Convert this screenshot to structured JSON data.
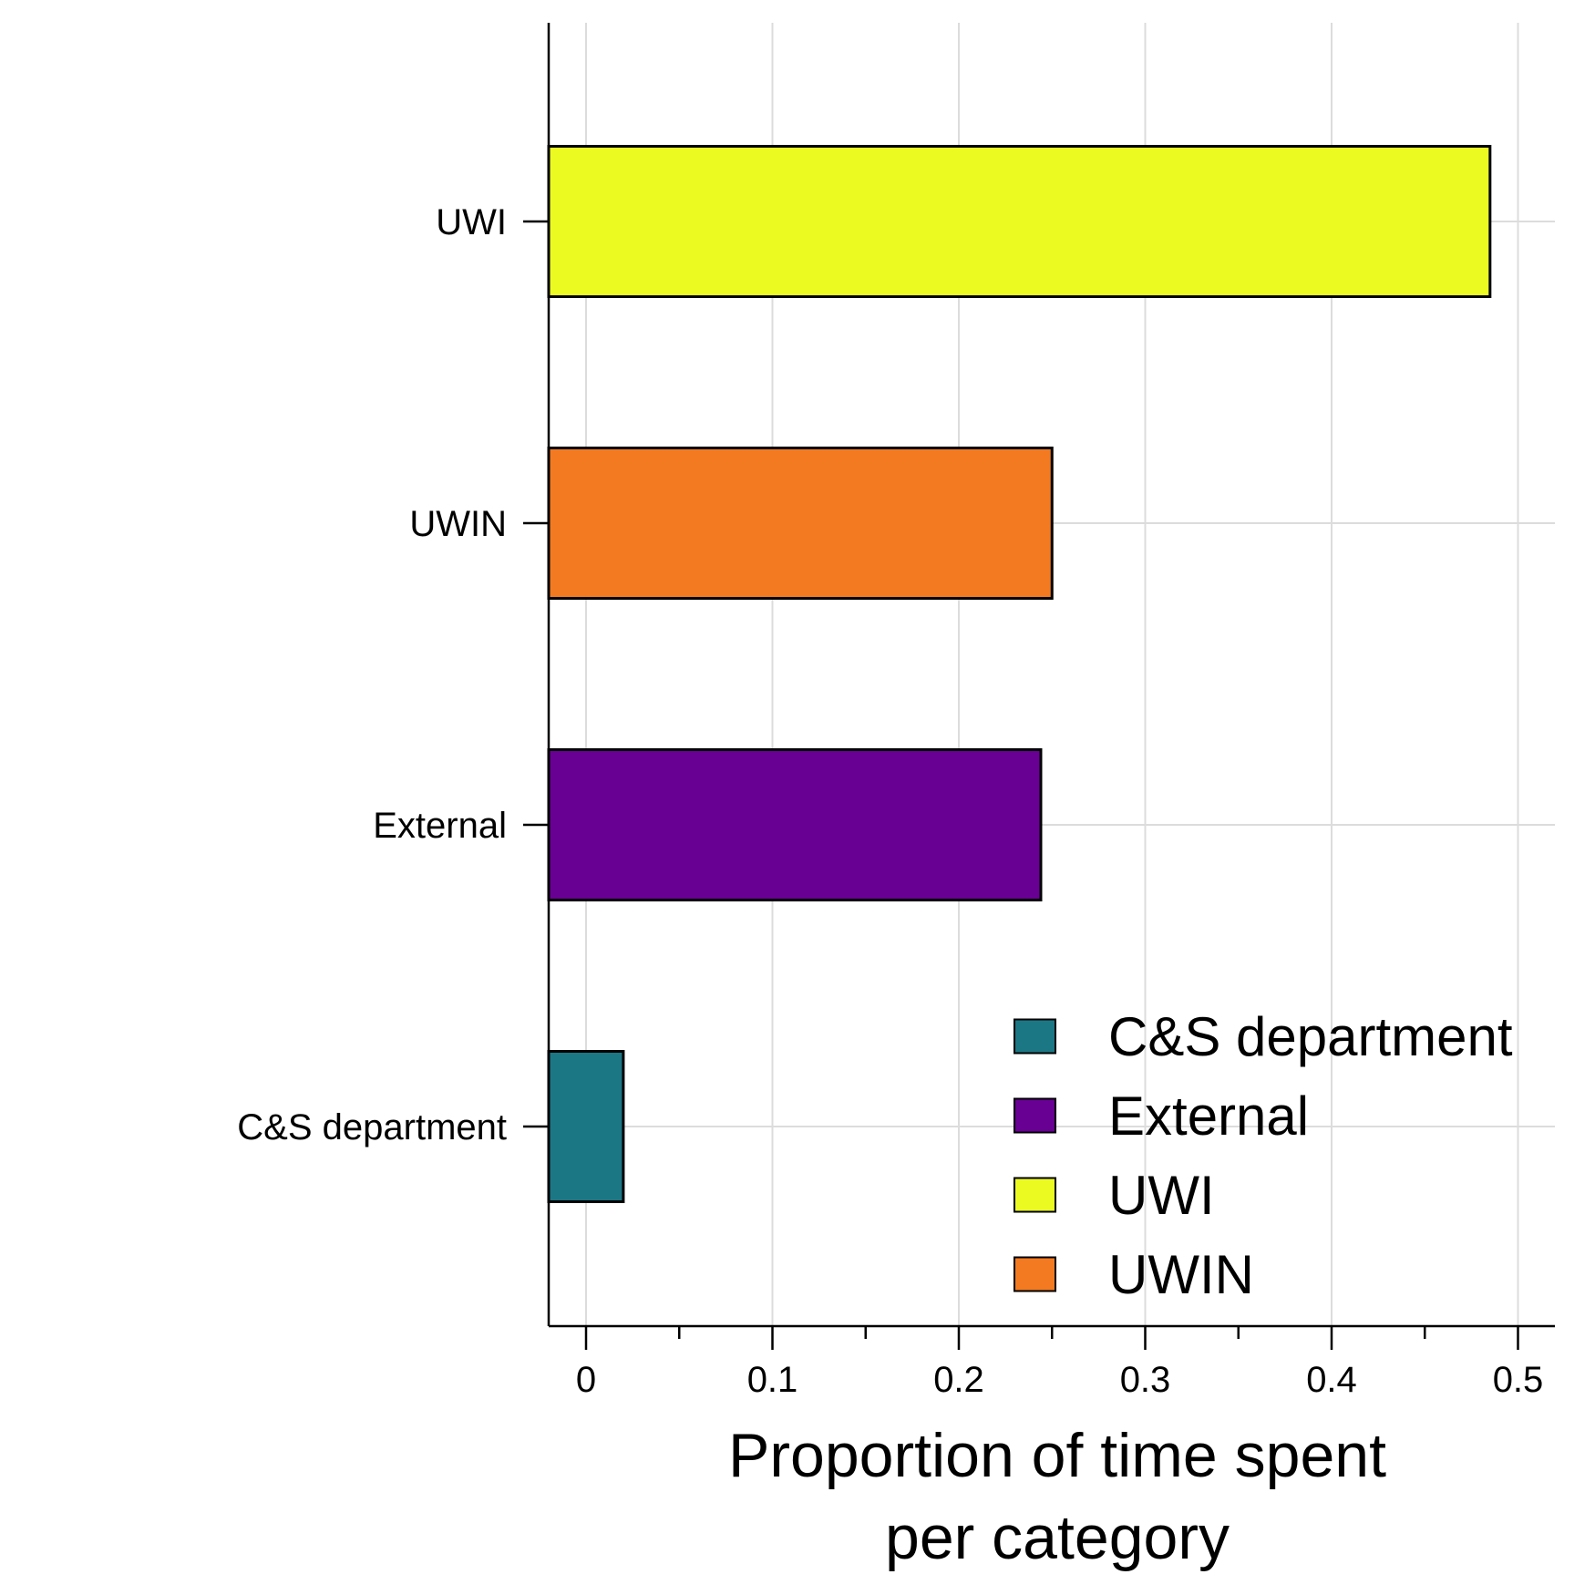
{
  "chart_data": {
    "type": "bar",
    "orientation": "horizontal",
    "categories": [
      "UWI",
      "UWIN",
      "External",
      "C&S department"
    ],
    "values": [
      0.485,
      0.25,
      0.244,
      0.02
    ],
    "colors": [
      "#ebfa20",
      "#f37a20",
      "#680094",
      "#1c7785"
    ],
    "xlabel_lines": [
      "Proportion of time spent",
      "per category"
    ],
    "ylabel": "",
    "title": "",
    "xlim": [
      -0.02,
      0.52
    ],
    "xticks": [
      0,
      0.1,
      0.2,
      0.3,
      0.4,
      0.5
    ],
    "xtick_labels": [
      "0",
      "0.1",
      "0.2",
      "0.3",
      "0.4",
      "0.5"
    ],
    "x_minor_ticks": [
      0.05,
      0.15,
      0.25,
      0.35,
      0.45
    ],
    "grid": true,
    "legend_position": "bottom-right",
    "legend": [
      {
        "label": "C&S department",
        "color": "#1c7785"
      },
      {
        "label": "External",
        "color": "#680094"
      },
      {
        "label": "UWI",
        "color": "#ebfa20"
      },
      {
        "label": "UWIN",
        "color": "#f37a20"
      }
    ]
  }
}
